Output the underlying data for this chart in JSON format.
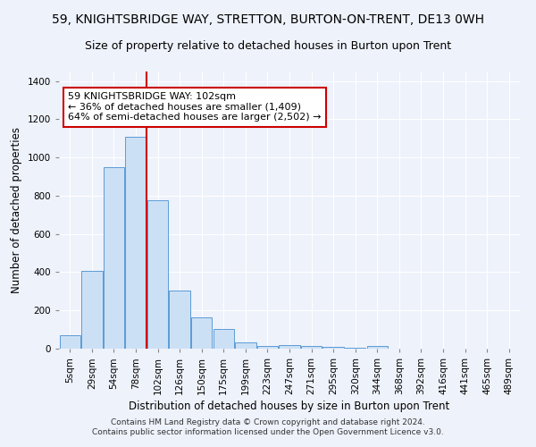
{
  "title": "59, KNIGHTSBRIDGE WAY, STRETTON, BURTON-ON-TRENT, DE13 0WH",
  "subtitle": "Size of property relative to detached houses in Burton upon Trent",
  "xlabel": "Distribution of detached houses by size in Burton upon Trent",
  "ylabel": "Number of detached properties",
  "bar_categories": [
    "5sqm",
    "29sqm",
    "54sqm",
    "78sqm",
    "102sqm",
    "126sqm",
    "150sqm",
    "175sqm",
    "199sqm",
    "223sqm",
    "247sqm",
    "271sqm",
    "295sqm",
    "320sqm",
    "344sqm",
    "368sqm",
    "392sqm",
    "416sqm",
    "441sqm",
    "465sqm",
    "489sqm"
  ],
  "bar_values": [
    70,
    405,
    950,
    1110,
    775,
    305,
    165,
    105,
    35,
    15,
    20,
    15,
    10,
    5,
    15,
    0,
    0,
    0,
    0,
    0,
    0
  ],
  "bar_color": "#cce0f5",
  "bar_edge_color": "#5b9bd5",
  "property_line_idx": 4,
  "property_line_color": "#cc0000",
  "annotation_text": "59 KNIGHTSBRIDGE WAY: 102sqm\n← 36% of detached houses are smaller (1,409)\n64% of semi-detached houses are larger (2,502) →",
  "annotation_box_color": "#cc0000",
  "ylim": [
    0,
    1450
  ],
  "yticks": [
    0,
    200,
    400,
    600,
    800,
    1000,
    1200,
    1400
  ],
  "footer_line1": "Contains HM Land Registry data © Crown copyright and database right 2024.",
  "footer_line2": "Contains public sector information licensed under the Open Government Licence v3.0.",
  "bg_color": "#eef2fb",
  "grid_color": "#ffffff",
  "title_fontsize": 10,
  "subtitle_fontsize": 9,
  "xlabel_fontsize": 8.5,
  "ylabel_fontsize": 8.5,
  "annotation_fontsize": 8,
  "tick_fontsize": 7.5,
  "footer_fontsize": 6.5
}
